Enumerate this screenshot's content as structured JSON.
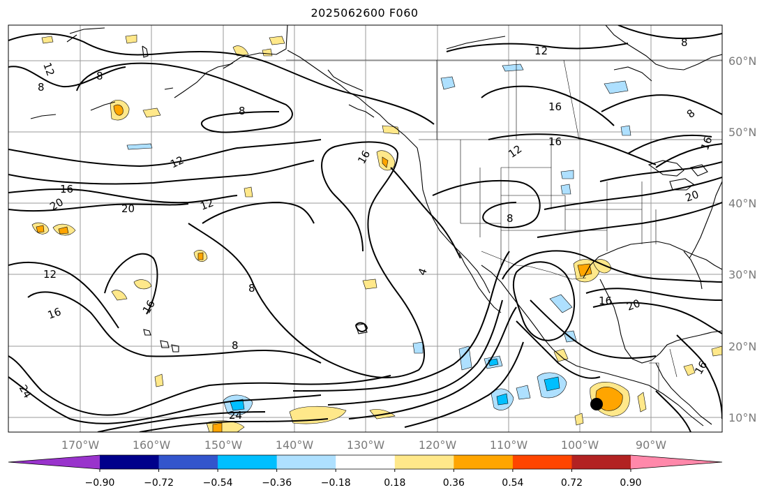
{
  "title": "2025062600 F060",
  "map": {
    "lon_labels": [
      "170°W",
      "160°W",
      "150°W",
      "140°W",
      "130°W",
      "120°W",
      "110°W",
      "100°W",
      "90°W"
    ],
    "lat_labels": [
      "60°N",
      "50°N",
      "40°N",
      "30°N",
      "20°N",
      "10°N"
    ],
    "gridline_color": "#9a9a9a",
    "coastline_color": "#000000",
    "contour_color": "#000000",
    "contour_labels": [
      "12",
      "8",
      "8",
      "16",
      "12",
      "20",
      "20",
      "12",
      "12",
      "16",
      "8",
      "8",
      "16",
      "16",
      "8",
      "8",
      "24",
      "24",
      "4",
      "12",
      "16",
      "16",
      "8",
      "12",
      "16",
      "8",
      "20",
      "16",
      "16",
      "20"
    ],
    "marker": "filled black circle"
  },
  "colorbar": {
    "colors": [
      "#9933cc",
      "#00008b",
      "#3355cc",
      "#00bfff",
      "#aee0ff",
      "#ffffff",
      "#ffe88a",
      "#ffa500",
      "#ff4500",
      "#b22222",
      "#ff88aa"
    ],
    "tick_labels": [
      "−0.90",
      "−0.72",
      "−0.54",
      "−0.36",
      "−0.18",
      "0.18",
      "0.36",
      "0.54",
      "0.72",
      "0.90"
    ]
  }
}
